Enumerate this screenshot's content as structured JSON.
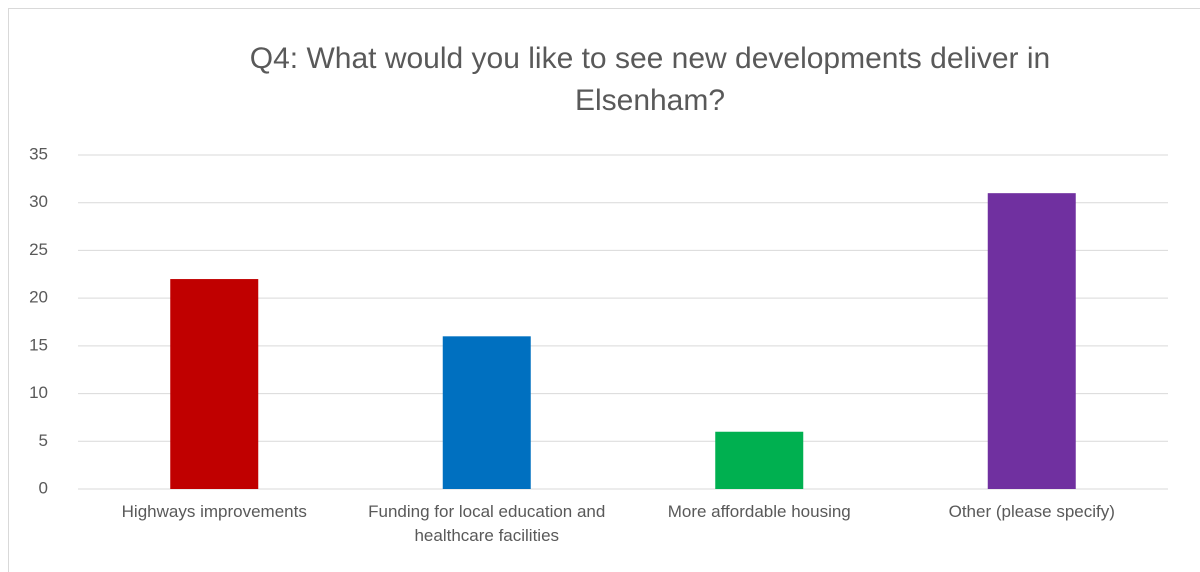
{
  "chart_data": {
    "type": "bar",
    "title": "Q4: What would you like to see new developments deliver in Elsenham?",
    "categories": [
      "Highways improvements",
      "Funding for local education and healthcare facilities",
      "More affordable housing",
      "Other (please specify)"
    ],
    "values": [
      22,
      16,
      6,
      31
    ],
    "colors": [
      "#c00000",
      "#0070c0",
      "#00b050",
      "#7030a0"
    ],
    "ylim": [
      0,
      35
    ],
    "yticks": [
      0,
      5,
      10,
      15,
      20,
      25,
      30,
      35
    ],
    "grid": true
  }
}
